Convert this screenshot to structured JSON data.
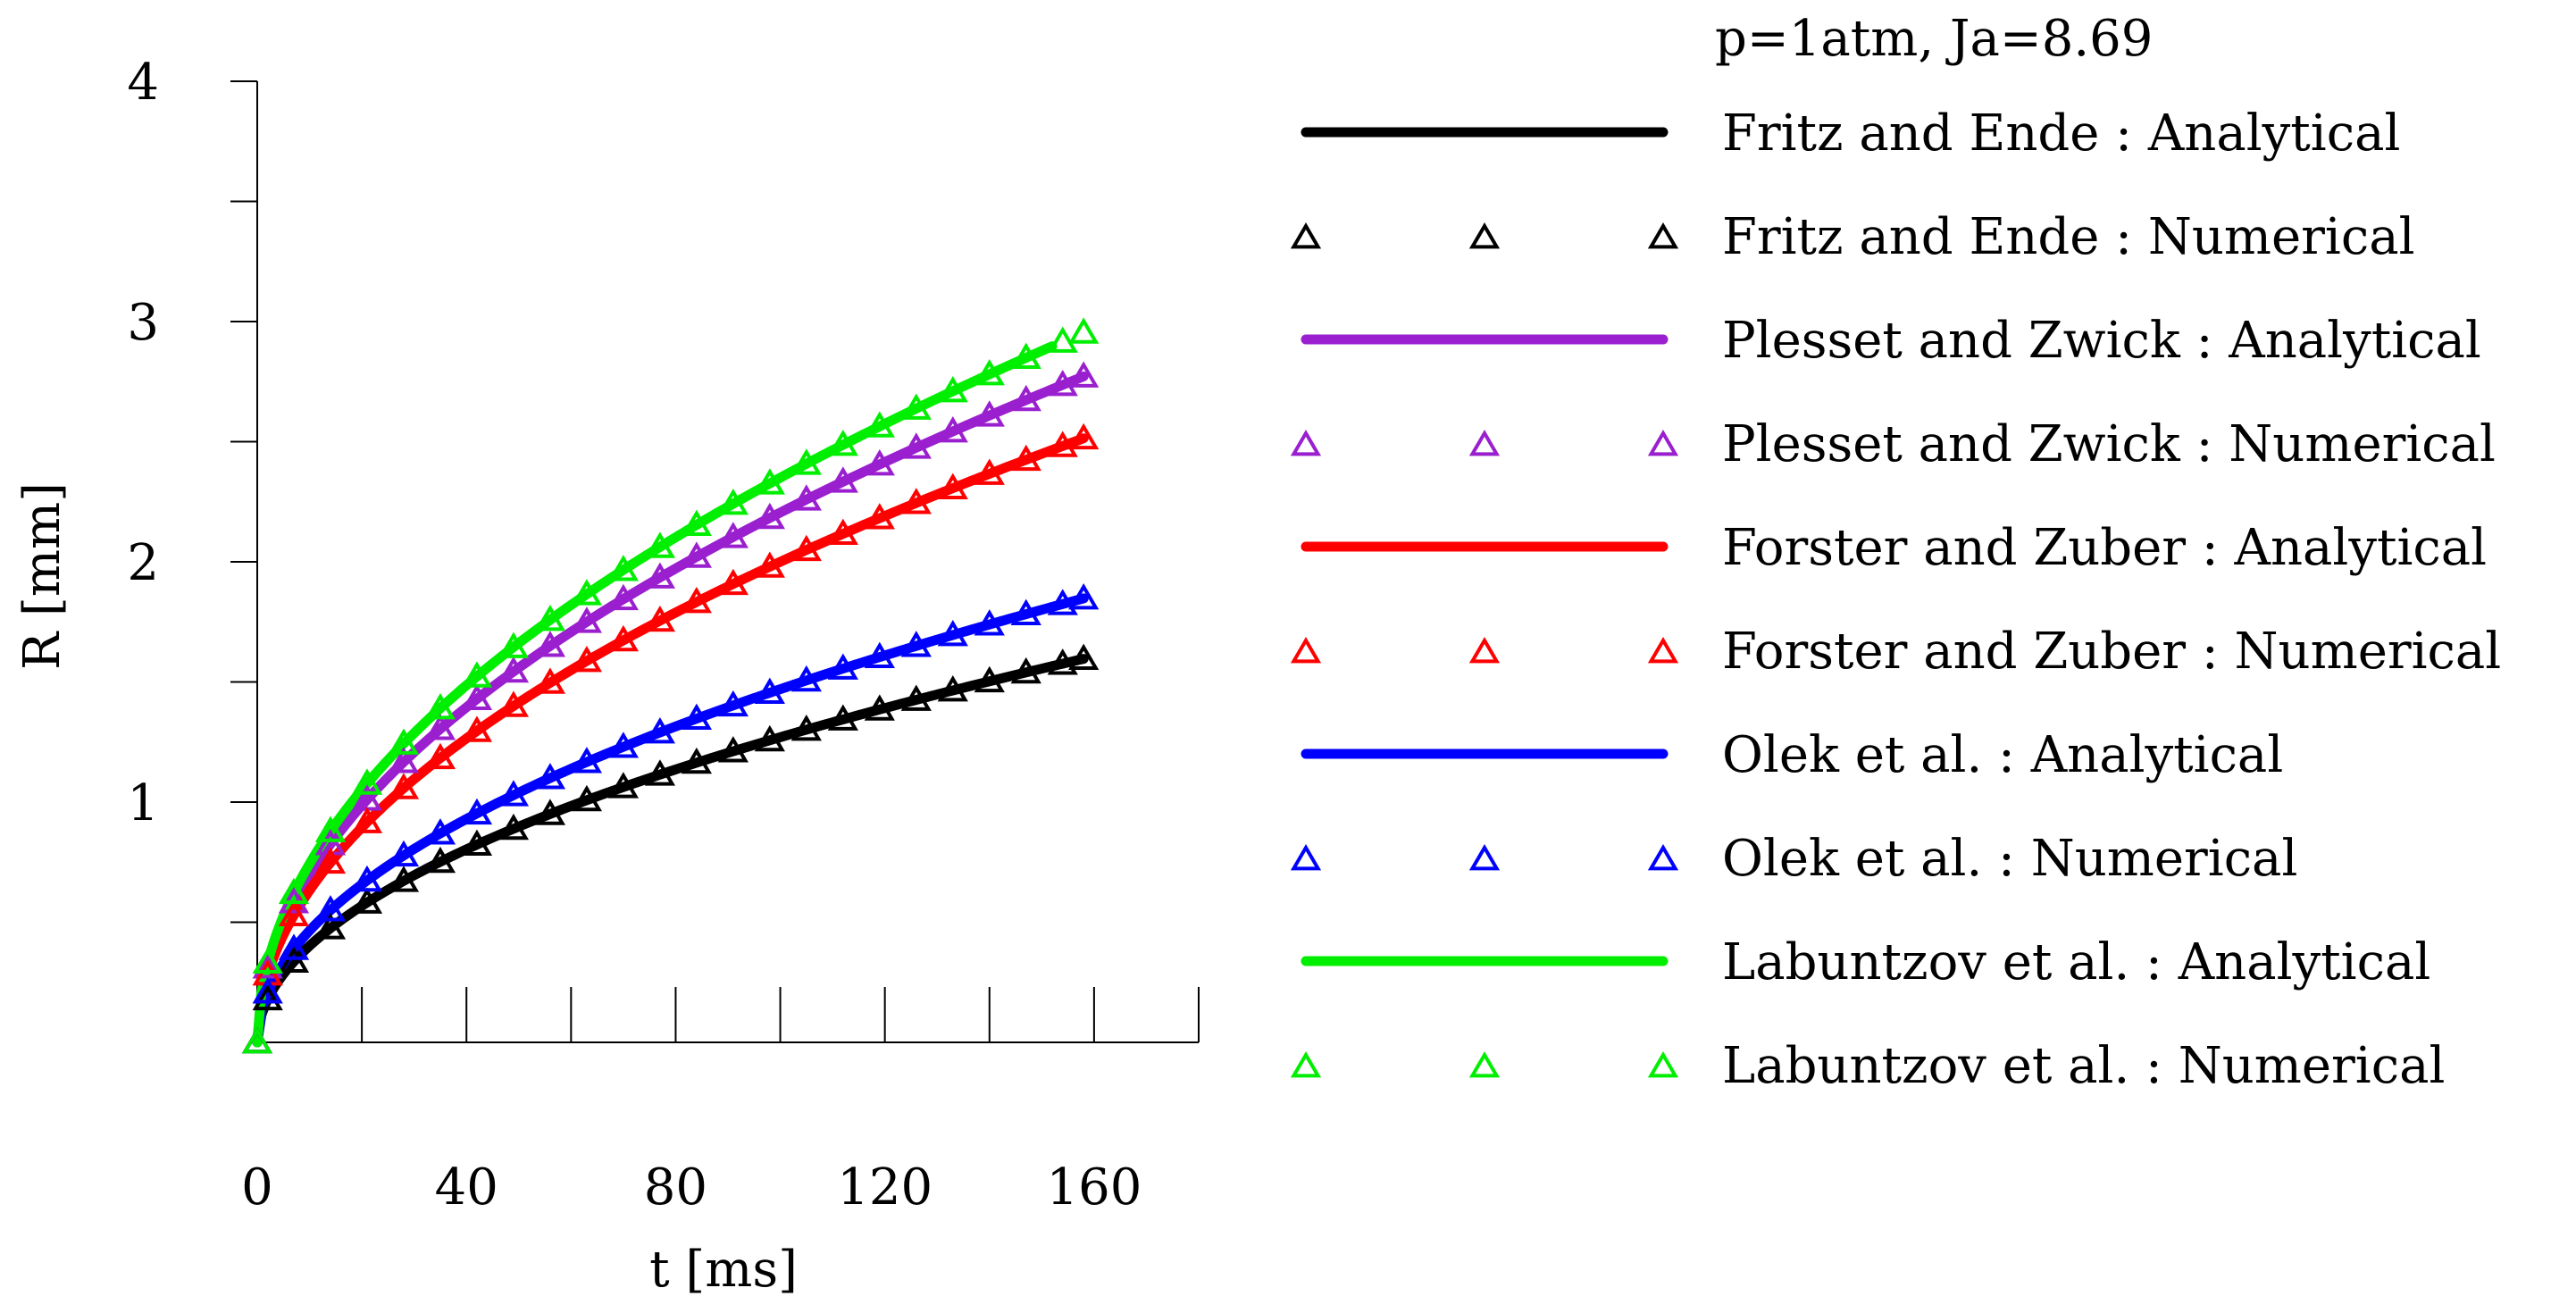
{
  "chart_data": {
    "type": "line",
    "title": "p=1atm, Ja=8.69",
    "xlabel": "t [ms]",
    "ylabel": "R [mm]",
    "xlim": [
      0,
      180
    ],
    "ylim": [
      0,
      4
    ],
    "xticks": [
      0,
      20,
      40,
      60,
      80,
      100,
      120,
      140,
      160,
      180
    ],
    "xtick_labels": [
      "0",
      "40",
      "80",
      "120",
      "160"
    ],
    "xtick_label_values": [
      0,
      40,
      80,
      120,
      160
    ],
    "yticks": [
      0.5,
      1,
      1.5,
      2,
      2.5,
      3,
      3.5,
      4
    ],
    "ytick_labels": [
      "1",
      "2",
      "3",
      "4"
    ],
    "ytick_label_values": [
      1,
      2,
      3,
      4
    ],
    "legend_position": "right",
    "numerical_t": [
      0,
      2,
      7,
      14,
      21,
      28,
      35,
      42,
      49,
      56,
      63,
      70,
      77,
      84,
      91,
      98,
      105,
      112,
      119,
      126,
      133,
      140,
      147,
      154,
      158
    ],
    "series": [
      {
        "name": "Fritz and Ende : Analytical",
        "kind": "analytical",
        "color": "#000000",
        "coef": 0.127,
        "t_end": 158
      },
      {
        "name": "Fritz and Ende : Numerical",
        "kind": "numerical",
        "color": "#000000",
        "coef": 0.127,
        "t_end": 158
      },
      {
        "name": "Plesset and Zwick : Analytical",
        "kind": "analytical",
        "color": "#9a1fcf",
        "coef": 0.2205,
        "t_end": 158
      },
      {
        "name": "Plesset and Zwick : Numerical",
        "kind": "numerical",
        "color": "#9a1fcf",
        "coef": 0.2205,
        "t_end": 158
      },
      {
        "name": "Forster and Zuber : Analytical",
        "kind": "analytical",
        "color": "#ff0000",
        "coef": 0.2,
        "t_end": 158
      },
      {
        "name": "Forster and Zuber : Numerical",
        "kind": "numerical",
        "color": "#ff0000",
        "coef": 0.2,
        "t_end": 158
      },
      {
        "name": "Olek et al. : Analytical",
        "kind": "analytical",
        "color": "#0000ff",
        "coef": 0.147,
        "t_end": 158
      },
      {
        "name": "Olek et al. : Numerical",
        "kind": "numerical",
        "color": "#0000ff",
        "coef": 0.147,
        "t_end": 158
      },
      {
        "name": "Labuntzov et al. : Analytical",
        "kind": "analytical",
        "color": "#00ee00",
        "coef": 0.235,
        "t_end": 152
      },
      {
        "name": "Labuntzov et al. : Numerical",
        "kind": "numerical",
        "color": "#00ee00",
        "coef": 0.235,
        "t_end": 158
      }
    ]
  }
}
